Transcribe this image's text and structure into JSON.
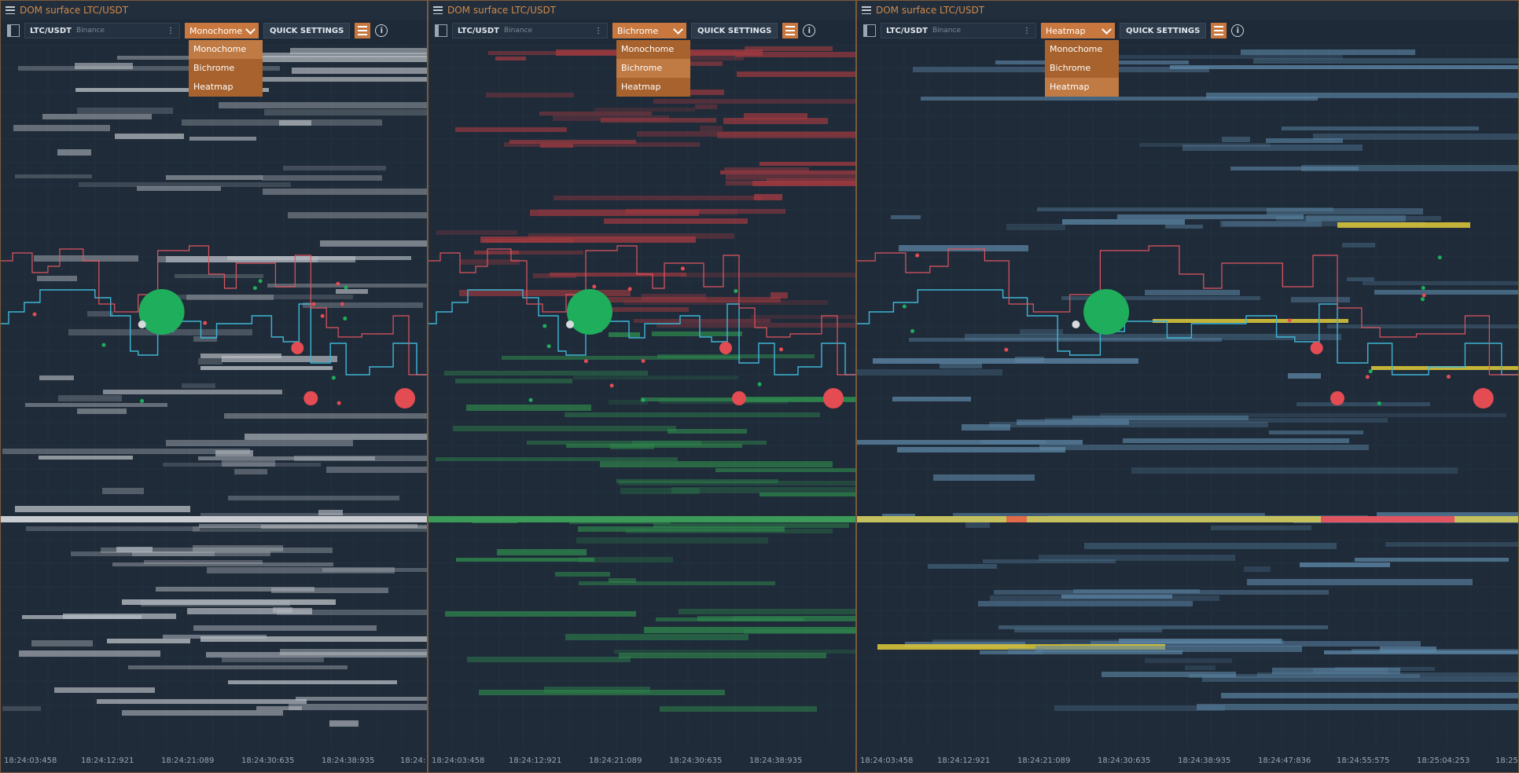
{
  "panels": [
    {
      "title": "DOM surface LTC/USDT",
      "symbol": "LTC/USDT",
      "exchange": "Binance",
      "mode": "Monochome",
      "quick_settings": "QUICK SETTINGS",
      "options": [
        "Monochome",
        "Bichrome",
        "Heatmap"
      ],
      "times": [
        "18:24:03:458",
        "18:24:12:921",
        "18:24:21:089",
        "18:24:30:635",
        "18:24:38:935",
        "18:24:"
      ]
    },
    {
      "title": "DOM surface LTC/USDT",
      "symbol": "LTC/USDT",
      "exchange": "Binance",
      "mode": "Bichrome",
      "quick_settings": "QUICK SETTINGS",
      "options": [
        "Monochome",
        "Bichrome",
        "Heatmap"
      ],
      "times": [
        "18:24:03:458",
        "18:24:12:921",
        "18:24:21:089",
        "18:24:30:635",
        "18:24:38:935"
      ]
    },
    {
      "title": "DOM surface LTC/USDT",
      "symbol": "LTC/USDT",
      "exchange": "Binance",
      "mode": "Heatmap",
      "quick_settings": "QUICK SETTINGS",
      "options": [
        "Monochome",
        "Bichrome",
        "Heatmap"
      ],
      "times": [
        "18:24:03:458",
        "18:24:12:921",
        "18:24:21:089",
        "18:24:30:635",
        "18:24:38:935",
        "18:24:47:836",
        "18:24:55:575",
        "18:25:04:253",
        "18:25"
      ]
    }
  ],
  "colors": {
    "accent": "#c8783e",
    "bid_line": "#3fb6d6",
    "ask_line": "#e05560",
    "buy_trade": "#1fae5c",
    "sell_trade": "#e24c52",
    "mono_level": "#b9bec4",
    "bichrome_bid": "#2f8a4d",
    "bichrome_ask": "#a33a40",
    "heat_cool": "#5d87a6",
    "heat_warm": "#d6c23a"
  }
}
